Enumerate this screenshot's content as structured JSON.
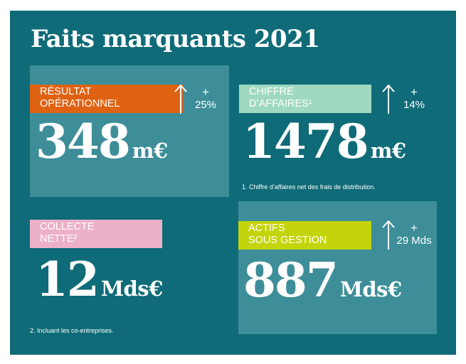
{
  "title": "Faits marquants 2021",
  "colors": {
    "background": "#0f6b78",
    "box": "#3d8e99",
    "label_orange": "#df6213",
    "label_mint": "#9fd9c0",
    "label_pink": "#ecb1c8",
    "label_lime": "#c3d40c"
  },
  "resultat": {
    "label_line1": "RÉSULTAT",
    "label_line2": "OPÉRATIONNEL",
    "arrow_icon": "arrow-up-icon",
    "delta_sign": "+",
    "delta_value": "25%",
    "value": "348",
    "unit": "m€"
  },
  "chiffre": {
    "label_line1": "CHIFFRE",
    "label_line2": "D’AFFAIRES¹",
    "arrow_icon": "arrow-up-icon",
    "delta_sign": "+",
    "delta_value": "14%",
    "value": "1478",
    "unit": "m€",
    "note": "1. Chiffre d’affaires net des frais de distribution."
  },
  "collecte": {
    "label_line1": "COLLECTE",
    "label_line2": "NETTE²",
    "value": "12",
    "unit": "Mds€",
    "note": "2. Incluant les co-entreprises."
  },
  "actifs": {
    "label_line1": "ACTIFS",
    "label_line2": "SOUS GESTION",
    "arrow_icon": "arrow-up-icon",
    "delta_sign": "+",
    "delta_value": "29 Mds",
    "value": "887",
    "unit": "Mds€"
  }
}
